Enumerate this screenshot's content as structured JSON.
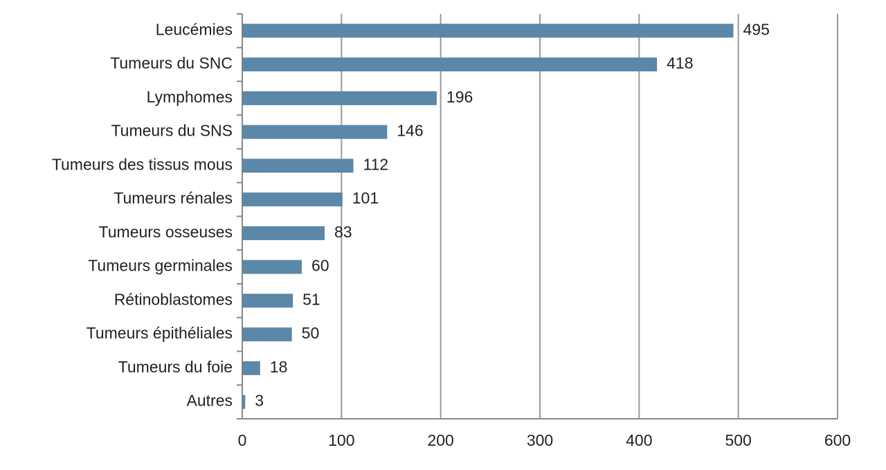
{
  "chart_data": {
    "type": "barh",
    "categories": [
      "Leucémies",
      "Tumeurs du SNC",
      "Lymphomes",
      "Tumeurs du SNS",
      "Tumeurs des tissus mous",
      "Tumeurs rénales",
      "Tumeurs osseuses",
      "Tumeurs germinales",
      "Rétinoblastomes",
      "Tumeurs épithéliales",
      "Tumeurs du foie",
      "Autres"
    ],
    "values": [
      495,
      418,
      196,
      146,
      112,
      101,
      83,
      60,
      51,
      50,
      18,
      3
    ],
    "color": "#5b87a8",
    "xlim": [
      0,
      600
    ],
    "xticks": [
      0,
      100,
      200,
      300,
      400,
      500,
      600
    ],
    "grid": true
  }
}
